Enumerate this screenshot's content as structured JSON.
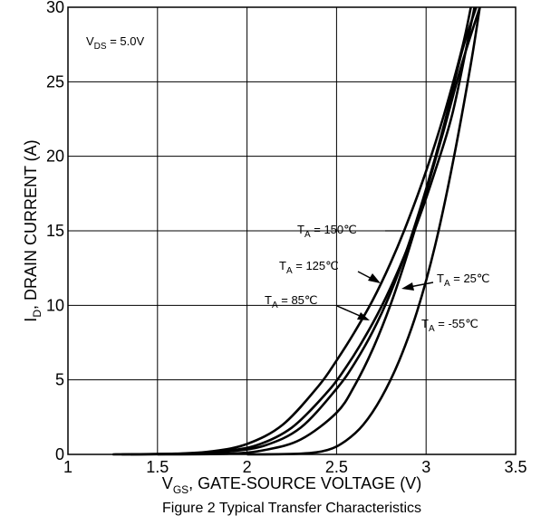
{
  "chart_data": {
    "type": "line",
    "title": "",
    "caption": "Figure 2 Typical Transfer Characteristics",
    "xlabel": {
      "main": "V",
      "sub": "GS",
      "rest": ", GATE-SOURCE VOLTAGE (V)"
    },
    "ylabel": {
      "main": "I",
      "sub": "D",
      "rest": ", DRAIN CURRENT (A)"
    },
    "xlim": [
      1,
      3.5
    ],
    "ylim": [
      0,
      30
    ],
    "xticks": [
      "1",
      "1.5",
      "2",
      "2.5",
      "3",
      "3.5"
    ],
    "xtick_values": [
      1,
      1.5,
      2,
      2.5,
      3,
      3.5
    ],
    "yticks": [
      "0",
      "5",
      "10",
      "15",
      "20",
      "25",
      "30"
    ],
    "ytick_values": [
      0,
      5,
      10,
      15,
      20,
      25,
      30
    ],
    "grid": true,
    "condition": {
      "main": "V",
      "sub": "DS",
      "rest": " = 5.0V"
    },
    "series": [
      {
        "name": "T_A = 150℃",
        "x": [
          1.25,
          1.6,
          1.8,
          2.0,
          2.2,
          2.4,
          2.5,
          2.6,
          2.7,
          2.8,
          2.9,
          3.0,
          3.1,
          3.2,
          3.25
        ],
        "y": [
          0,
          0.05,
          0.2,
          0.7,
          2.0,
          4.6,
          6.3,
          8.2,
          10.3,
          12.8,
          15.7,
          19.0,
          22.8,
          27.2,
          30
        ]
      },
      {
        "name": "T_A = 125℃",
        "x": [
          1.3,
          1.65,
          1.85,
          2.05,
          2.25,
          2.45,
          2.55,
          2.65,
          2.75,
          2.85,
          2.95,
          3.05,
          3.15,
          3.25,
          3.27
        ],
        "y": [
          0,
          0.05,
          0.2,
          0.6,
          1.8,
          4.2,
          5.8,
          7.7,
          9.9,
          12.5,
          15.5,
          19.0,
          23.0,
          28.8,
          30
        ]
      },
      {
        "name": "T_A = 85℃",
        "x": [
          1.35,
          1.7,
          1.9,
          2.1,
          2.3,
          2.5,
          2.6,
          2.7,
          2.8,
          2.9,
          3.0,
          3.1,
          3.2,
          3.28
        ],
        "y": [
          0,
          0.05,
          0.2,
          0.6,
          1.8,
          4.4,
          6.1,
          8.2,
          10.8,
          14.0,
          17.8,
          22.1,
          27.0,
          30
        ]
      },
      {
        "name": "T_A = 25℃",
        "x": [
          1.5,
          1.9,
          2.1,
          2.3,
          2.5,
          2.6,
          2.7,
          2.8,
          2.9,
          3.0,
          3.1,
          3.2,
          3.3
        ],
        "y": [
          0,
          0.05,
          0.3,
          1.0,
          2.8,
          4.6,
          7.0,
          10.0,
          13.6,
          17.6,
          21.8,
          26.2,
          30
        ]
      },
      {
        "name": "T_A = -55℃",
        "x": [
          2.0,
          2.3,
          2.45,
          2.55,
          2.65,
          2.75,
          2.85,
          2.95,
          3.05,
          3.15,
          3.25,
          3.3
        ],
        "y": [
          0,
          0.05,
          0.3,
          0.9,
          2.0,
          3.8,
          6.3,
          9.6,
          14.0,
          19.6,
          26.2,
          30
        ]
      }
    ],
    "annotations": [
      {
        "main": "T",
        "sub": "A",
        "rest": " = 150℃"
      },
      {
        "main": "T",
        "sub": "A",
        "rest": " = 125℃"
      },
      {
        "main": "T",
        "sub": "A",
        "rest": " = 85℃"
      },
      {
        "main": "T",
        "sub": "A",
        "rest": " = 25℃"
      },
      {
        "main": "T",
        "sub": "A",
        "rest": " = -55℃"
      }
    ]
  }
}
